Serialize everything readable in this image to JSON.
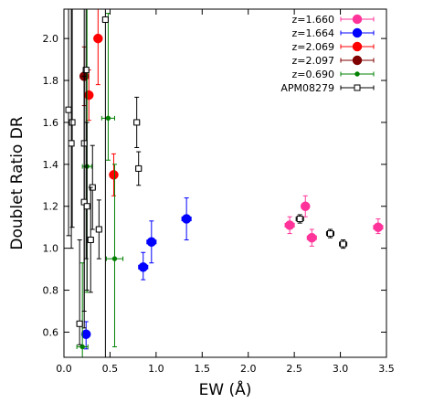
{
  "chart_data": {
    "type": "scatter",
    "xlabel": "EW (Å)",
    "ylabel": "Doublet Ratio DR",
    "xlim": [
      0,
      3.5
    ],
    "ylim": [
      0.48,
      2.14
    ],
    "x_ticks": [
      "0.0",
      "0.5",
      "1.0",
      "1.5",
      "2.0",
      "2.5",
      "3.0",
      "3.5"
    ],
    "y_ticks": [
      "0.6",
      "0.8",
      "1.0",
      "1.2",
      "1.4",
      "1.6",
      "1.8",
      "2.0"
    ],
    "x_tick_values": [
      0,
      0.5,
      1.0,
      1.5,
      2.0,
      2.5,
      3.0,
      3.5
    ],
    "y_tick_values": [
      0.6,
      0.8,
      1.0,
      1.2,
      1.4,
      1.6,
      1.8,
      2.0
    ],
    "grid": false,
    "legend_position": "top-right",
    "series": [
      {
        "name": "z=1.660",
        "color": "#ff3399",
        "marker": "circle",
        "size": "large",
        "points": [
          {
            "x": 2.45,
            "y": 1.11,
            "xerr": 0.05,
            "yerr_lo": 0.04,
            "yerr_hi": 0.04
          },
          {
            "x": 2.62,
            "y": 1.2,
            "xerr": 0.04,
            "yerr_lo": 0.05,
            "yerr_hi": 0.05
          },
          {
            "x": 2.69,
            "y": 1.05,
            "xerr": 0.05,
            "yerr_lo": 0.04,
            "yerr_hi": 0.04
          },
          {
            "x": 3.41,
            "y": 1.1,
            "xerr": 0.05,
            "yerr_lo": 0.03,
            "yerr_hi": 0.04
          }
        ]
      },
      {
        "name": "z=1.664",
        "color": "#0000ff",
        "marker": "circle",
        "size": "large",
        "points": [
          {
            "x": 0.24,
            "y": 0.59,
            "xerr": 0.04,
            "yerr_lo": 0.07,
            "yerr_hi": 0.06
          },
          {
            "x": 0.86,
            "y": 0.91,
            "xerr": 0.05,
            "yerr_lo": 0.06,
            "yerr_hi": 0.07
          },
          {
            "x": 0.95,
            "y": 1.03,
            "xerr": 0.05,
            "yerr_lo": 0.1,
            "yerr_hi": 0.1
          },
          {
            "x": 1.33,
            "y": 1.14,
            "xerr": 0.05,
            "yerr_lo": 0.1,
            "yerr_hi": 0.1
          }
        ]
      },
      {
        "name": "z=2.069",
        "color": "#ff0000",
        "marker": "circle",
        "size": "large",
        "points": [
          {
            "x": 0.37,
            "y": 2.0,
            "xerr": 0.04,
            "yerr_lo": 0.22,
            "yerr_hi": 0.14
          },
          {
            "x": 0.27,
            "y": 1.73,
            "xerr": 0.04,
            "yerr_lo": 0.12,
            "yerr_hi": 0.12
          },
          {
            "x": 0.54,
            "y": 1.35,
            "xerr": 0.04,
            "yerr_lo": 0.1,
            "yerr_hi": 0.1
          }
        ]
      },
      {
        "name": "z=2.097",
        "color": "#800000",
        "marker": "circle",
        "size": "large",
        "points": [
          {
            "x": 0.22,
            "y": 1.82,
            "xerr": 0.04,
            "yerr_lo": 0.14,
            "yerr_hi": 0.14
          }
        ]
      },
      {
        "name": "z=0.690",
        "color": "#008000",
        "marker": "circle",
        "size": "small",
        "points": [
          {
            "x": 0.48,
            "y": 1.62,
            "xerr": 0.07,
            "yerr_lo": 0.2,
            "yerr_hi": 0.5
          },
          {
            "x": 0.25,
            "y": 1.39,
            "xerr": 0.05,
            "yerr_lo": 0.6,
            "yerr_hi": 0.8
          },
          {
            "x": 0.55,
            "y": 0.95,
            "xerr": 0.09,
            "yerr_lo": 0.42,
            "yerr_hi": 0.45
          },
          {
            "x": 0.2,
            "y": 0.53,
            "xerr": 0.06,
            "yerr_lo": 0.1,
            "yerr_hi": 0.4
          }
        ]
      },
      {
        "name": "APM08279",
        "color": "#000000",
        "marker": "open-square",
        "size": "small",
        "points": [
          {
            "x": 0.45,
            "y": 2.09,
            "xerr": 0.03,
            "yerr_lo": 1.7,
            "yerr_hi": 0.3
          },
          {
            "x": 0.24,
            "y": 1.85,
            "xerr": 0.03,
            "yerr_lo": 0.9,
            "yerr_hi": 0.5
          },
          {
            "x": 0.05,
            "y": 1.66,
            "xerr": 0.02,
            "yerr_lo": 0.6,
            "yerr_hi": 0.6
          },
          {
            "x": 0.09,
            "y": 1.6,
            "xerr": 0.02,
            "yerr_lo": 0.5,
            "yerr_hi": 0.6
          },
          {
            "x": 0.08,
            "y": 1.5,
            "xerr": 0.02,
            "yerr_lo": 0.5,
            "yerr_hi": 0.7
          },
          {
            "x": 0.22,
            "y": 1.5,
            "xerr": 0.02,
            "yerr_lo": 0.8,
            "yerr_hi": 0.7
          },
          {
            "x": 0.79,
            "y": 1.6,
            "xerr": 0.03,
            "yerr_lo": 0.12,
            "yerr_hi": 0.12
          },
          {
            "x": 0.81,
            "y": 1.38,
            "xerr": 0.03,
            "yerr_lo": 0.08,
            "yerr_hi": 0.08
          },
          {
            "x": 0.31,
            "y": 1.29,
            "xerr": 0.03,
            "yerr_lo": 0.2,
            "yerr_hi": 0.2
          },
          {
            "x": 0.22,
            "y": 1.22,
            "xerr": 0.03,
            "yerr_lo": 0.6,
            "yerr_hi": 0.6
          },
          {
            "x": 0.25,
            "y": 1.2,
            "xerr": 0.03,
            "yerr_lo": 0.4,
            "yerr_hi": 0.4
          },
          {
            "x": 0.38,
            "y": 1.09,
            "xerr": 0.03,
            "yerr_lo": 0.14,
            "yerr_hi": 0.14
          },
          {
            "x": 0.29,
            "y": 1.04,
            "xerr": 0.03,
            "yerr_lo": 0.25,
            "yerr_hi": 0.25
          },
          {
            "x": 0.17,
            "y": 0.64,
            "xerr": 0.03,
            "yerr_lo": 0.1,
            "yerr_hi": 0.4
          },
          {
            "x": 2.56,
            "y": 1.14,
            "xerr": 0.04,
            "yerr_lo": 0.02,
            "yerr_hi": 0.02
          },
          {
            "x": 2.89,
            "y": 1.07,
            "xerr": 0.04,
            "yerr_lo": 0.02,
            "yerr_hi": 0.02
          },
          {
            "x": 3.03,
            "y": 1.02,
            "xerr": 0.04,
            "yerr_lo": 0.02,
            "yerr_hi": 0.02
          }
        ]
      }
    ]
  }
}
